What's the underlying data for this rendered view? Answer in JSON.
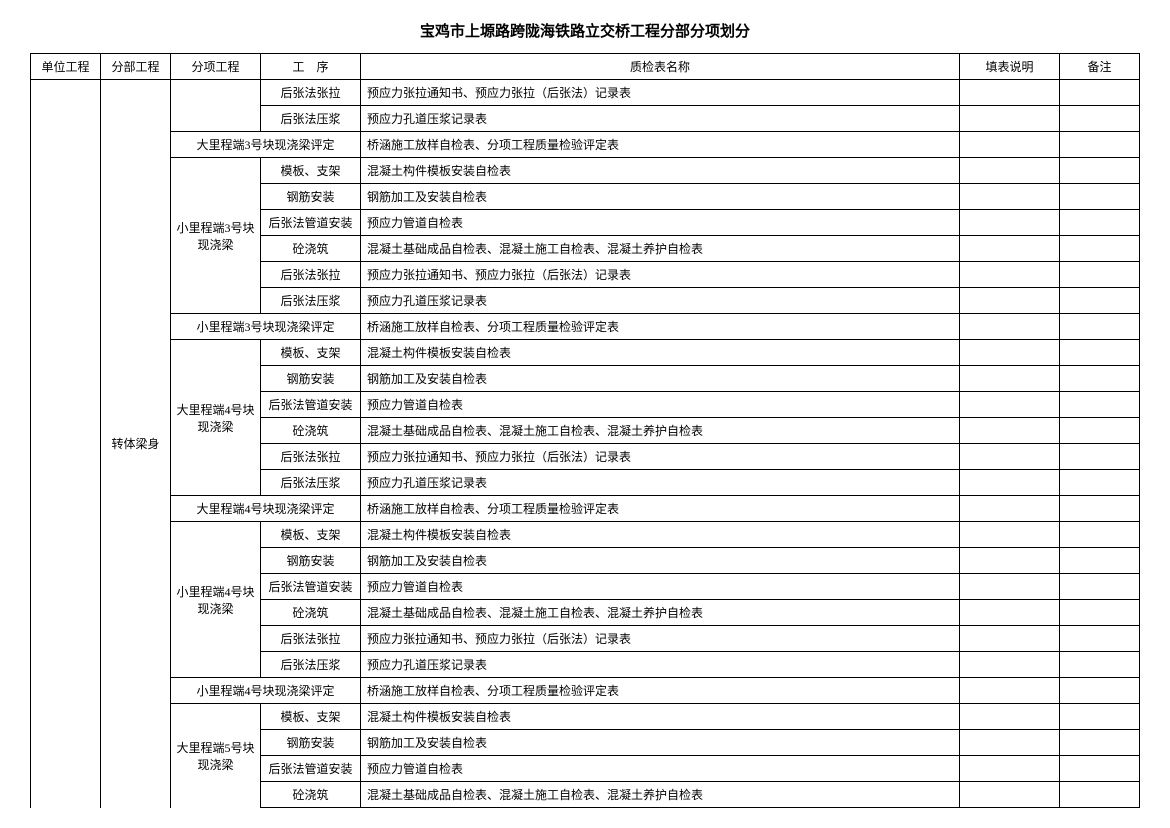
{
  "title": "宝鸡市上塬路跨陇海铁路立交桥工程分部分项划分",
  "headers": {
    "unit": "单位工程",
    "section": "分部工程",
    "item": "分项工程",
    "proc": "工　序",
    "name": "质检表名称",
    "desc": "填表说明",
    "remark": "备注"
  },
  "section_label": "转体梁身",
  "groups": [
    {
      "item_label": "",
      "rows": [
        {
          "proc": "后张法张拉",
          "name": "预应力张拉通知书、预应力张拉（后张法）记录表"
        },
        {
          "proc": "后张法压浆",
          "name": "预应力孔道压浆记录表"
        }
      ],
      "open_top": true
    },
    {
      "eval_label": "大里程端3号块现浇梁评定",
      "eval_name": "桥涵施工放样自检表、分项工程质量检验评定表"
    },
    {
      "item_label": "小里程端3号块现浇梁",
      "rows": [
        {
          "proc": "模板、支架",
          "name": "混凝土构件模板安装自检表"
        },
        {
          "proc": "钢筋安装",
          "name": "钢筋加工及安装自检表"
        },
        {
          "proc": "后张法管道安装",
          "name": "预应力管道自检表"
        },
        {
          "proc": "砼浇筑",
          "name": "混凝土基础成品自检表、混凝土施工自检表、混凝土养护自检表"
        },
        {
          "proc": "后张法张拉",
          "name": "预应力张拉通知书、预应力张拉（后张法）记录表"
        },
        {
          "proc": "后张法压浆",
          "name": "预应力孔道压浆记录表"
        }
      ]
    },
    {
      "eval_label": "小里程端3号块现浇梁评定",
      "eval_name": "桥涵施工放样自检表、分项工程质量检验评定表"
    },
    {
      "item_label": "大里程端4号块现浇梁",
      "rows": [
        {
          "proc": "模板、支架",
          "name": "混凝土构件模板安装自检表"
        },
        {
          "proc": "钢筋安装",
          "name": "钢筋加工及安装自检表"
        },
        {
          "proc": "后张法管道安装",
          "name": "预应力管道自检表"
        },
        {
          "proc": "砼浇筑",
          "name": "混凝土基础成品自检表、混凝土施工自检表、混凝土养护自检表"
        },
        {
          "proc": "后张法张拉",
          "name": "预应力张拉通知书、预应力张拉（后张法）记录表"
        },
        {
          "proc": "后张法压浆",
          "name": "预应力孔道压浆记录表"
        }
      ]
    },
    {
      "eval_label": "大里程端4号块现浇梁评定",
      "eval_name": "桥涵施工放样自检表、分项工程质量检验评定表"
    },
    {
      "item_label": "小里程端4号块现浇梁",
      "rows": [
        {
          "proc": "模板、支架",
          "name": "混凝土构件模板安装自检表"
        },
        {
          "proc": "钢筋安装",
          "name": "钢筋加工及安装自检表"
        },
        {
          "proc": "后张法管道安装",
          "name": "预应力管道自检表"
        },
        {
          "proc": "砼浇筑",
          "name": "混凝土基础成品自检表、混凝土施工自检表、混凝土养护自检表"
        },
        {
          "proc": "后张法张拉",
          "name": "预应力张拉通知书、预应力张拉（后张法）记录表"
        },
        {
          "proc": "后张法压浆",
          "name": "预应力孔道压浆记录表"
        }
      ]
    },
    {
      "eval_label": "小里程端4号块现浇梁评定",
      "eval_name": "桥涵施工放样自检表、分项工程质量检验评定表"
    },
    {
      "item_label": "大里程端5号块现浇梁",
      "rows": [
        {
          "proc": "模板、支架",
          "name": "混凝土构件模板安装自检表"
        },
        {
          "proc": "钢筋安装",
          "name": "钢筋加工及安装自检表"
        },
        {
          "proc": "后张法管道安装",
          "name": "预应力管道自检表"
        },
        {
          "proc": "砼浇筑",
          "name": "混凝土基础成品自检表、混凝土施工自检表、混凝土养护自检表"
        }
      ],
      "open_bottom": true
    }
  ]
}
